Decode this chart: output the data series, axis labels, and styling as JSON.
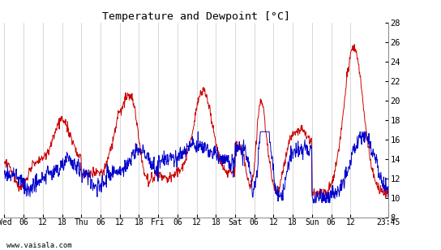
{
  "title": "Temperature and Dewpoint [°C]",
  "yticks": [
    8,
    10,
    12,
    14,
    16,
    18,
    20,
    22,
    24,
    26,
    28
  ],
  "ylim": [
    8,
    28
  ],
  "xtick_hours": [
    0,
    6,
    12,
    18,
    24,
    30,
    36,
    42,
    48,
    54,
    60,
    66,
    72,
    78,
    84,
    90,
    96,
    102,
    108,
    119.75
  ],
  "xlabel_ticks": [
    "Wed",
    "06",
    "12",
    "18",
    "Thu",
    "06",
    "12",
    "18",
    "Fri",
    "06",
    "12",
    "18",
    "Sat",
    "06",
    "12",
    "18",
    "Sun",
    "06",
    "12",
    "23:45"
  ],
  "total_hours": 119.75,
  "watermark": "www.vaisala.com",
  "temp_color": "#cc0000",
  "dew_color": "#0000cc",
  "bg_color": "#ffffff",
  "grid_color": "#c8c8c8",
  "linewidth": 0.7,
  "n_points": 960
}
